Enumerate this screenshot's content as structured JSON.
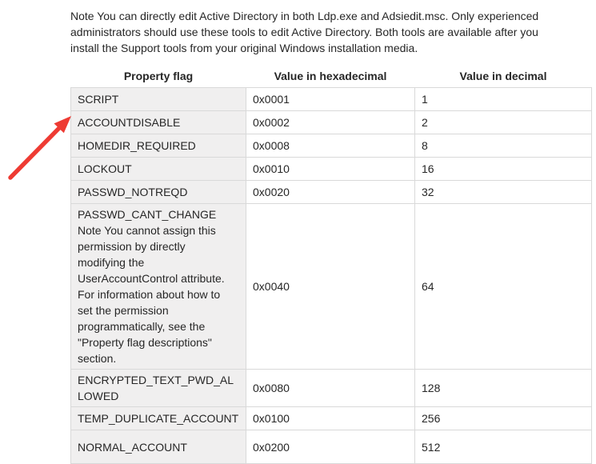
{
  "note": "Note You can directly edit Active Directory in both Ldp.exe and Adsiedit.msc. Only experienced\nadministrators should use these tools to edit Active Directory. Both tools are available after you\ninstall the Support tools from your original Windows installation media.",
  "table": {
    "headers": [
      "Property flag",
      "Value in hexadecimal",
      "Value in decimal"
    ],
    "rows": [
      {
        "flag": "SCRIPT",
        "hex": "0x0001",
        "dec": "1"
      },
      {
        "flag": "ACCOUNTDISABLE",
        "hex": "0x0002",
        "dec": "2"
      },
      {
        "flag": "HOMEDIR_REQUIRED",
        "hex": "0x0008",
        "dec": "8"
      },
      {
        "flag": "LOCKOUT",
        "hex": "0x0010",
        "dec": "16"
      },
      {
        "flag": "PASSWD_NOTREQD",
        "hex": "0x0020",
        "dec": "32"
      },
      {
        "flag": "PASSWD_CANT_CHANGE\nNote You cannot assign this\npermission by directly\nmodifying the\nUserAccountControl attribute.\nFor information about how to\nset the permission\nprogrammatically, see the\n\"Property flag descriptions\"\nsection.",
        "hex": "0x0040",
        "dec": "64"
      },
      {
        "flag": "ENCRYPTED_TEXT_PWD_ALLOWED",
        "hex": "0x0080",
        "dec": "128"
      },
      {
        "flag": "TEMP_DUPLICATE_ACCOUNT",
        "hex": "0x0100",
        "dec": "256"
      },
      {
        "flag": "NORMAL_ACCOUNT",
        "hex": "0x0200",
        "dec": "512"
      }
    ]
  },
  "annotation": {
    "arrow_color": "#ee3b33",
    "target_row": "ACCOUNTDISABLE"
  },
  "colors": {
    "flag_column_bg": "#f0efef",
    "table_border": "#d9d9d9",
    "text": "#262626"
  }
}
